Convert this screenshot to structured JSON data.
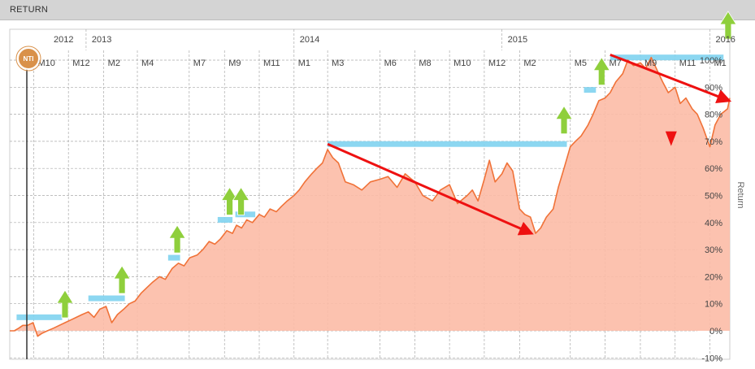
{
  "panel": {
    "title": "RETURN"
  },
  "badge": {
    "label": "NTI"
  },
  "colors": {
    "area": "#fcbba6",
    "line": "#f07238",
    "level_bar": "#7fd3f0",
    "buy_arrow": "#8fcf3c",
    "sell_arrow": "#ee1111",
    "trend_arrow": "#ee1111",
    "grid": "#aaaaaa",
    "badge": "#d9914a"
  },
  "chart_data": {
    "type": "area",
    "title": "",
    "xlabel": "",
    "ylabel": "Return",
    "ylim": [
      -10,
      100
    ],
    "xlim": [
      "2012-08-20",
      "2016-02-05"
    ],
    "grid": true,
    "y_ticks": [
      "-10%",
      "0%",
      "10%",
      "20%",
      "30%",
      "40%",
      "50%",
      "60%",
      "70%",
      "80%",
      "90%",
      "100%"
    ],
    "y_tick_values": [
      -10,
      0,
      10,
      20,
      30,
      40,
      50,
      60,
      70,
      80,
      90,
      100
    ],
    "year_labels": [
      {
        "label": "2012",
        "date": "2012-09-01"
      },
      {
        "label": "2013",
        "date": "2013-01-01"
      },
      {
        "label": "2014",
        "date": "2014-01-01"
      },
      {
        "label": "2015",
        "date": "2015-01-01"
      },
      {
        "label": "2016",
        "date": "2016-01-01"
      }
    ],
    "month_labels": [
      {
        "label": "M10",
        "date": "2012-10-01"
      },
      {
        "label": "M12",
        "date": "2012-12-01"
      },
      {
        "label": "M2",
        "date": "2013-02-01"
      },
      {
        "label": "M4",
        "date": "2013-04-01"
      },
      {
        "label": "M7",
        "date": "2013-07-01"
      },
      {
        "label": "M9",
        "date": "2013-09-01"
      },
      {
        "label": "M11",
        "date": "2013-11-01"
      },
      {
        "label": "M1",
        "date": "2014-01-01"
      },
      {
        "label": "M3",
        "date": "2014-03-01"
      },
      {
        "label": "M6",
        "date": "2014-06-01"
      },
      {
        "label": "M8",
        "date": "2014-08-01"
      },
      {
        "label": "M10",
        "date": "2014-10-01"
      },
      {
        "label": "M12",
        "date": "2014-12-01"
      },
      {
        "label": "M2",
        "date": "2015-02-01"
      },
      {
        "label": "M5",
        "date": "2015-05-01"
      },
      {
        "label": "M7",
        "date": "2015-07-01"
      },
      {
        "label": "M9",
        "date": "2015-09-01"
      },
      {
        "label": "M11",
        "date": "2015-11-01"
      },
      {
        "label": "M1",
        "date": "2016-01-01"
      }
    ],
    "series": [
      {
        "x": [
          "2012-08-20",
          "2012-08-28",
          "2012-09-05",
          "2012-09-12",
          "2012-09-20",
          "2012-09-30",
          "2012-10-08",
          "2012-10-15",
          "2012-10-25",
          "2012-11-05",
          "2012-11-15",
          "2012-11-25",
          "2012-12-05",
          "2012-12-15",
          "2012-12-25",
          "2013-01-05",
          "2013-01-15",
          "2013-01-25",
          "2013-02-05",
          "2013-02-15",
          "2013-02-25",
          "2013-03-08",
          "2013-03-18",
          "2013-03-28",
          "2013-04-08",
          "2013-04-18",
          "2013-04-28",
          "2013-05-10",
          "2013-05-20",
          "2013-06-01",
          "2013-06-12",
          "2013-06-22",
          "2013-07-02",
          "2013-07-15",
          "2013-07-25",
          "2013-08-05",
          "2013-08-15",
          "2013-08-25",
          "2013-09-05",
          "2013-09-15",
          "2013-09-22",
          "2013-10-01",
          "2013-10-10",
          "2013-10-20",
          "2013-11-01",
          "2013-11-10",
          "2013-11-20",
          "2013-12-01",
          "2013-12-10",
          "2013-12-20",
          "2014-01-01",
          "2014-01-10",
          "2014-01-20",
          "2014-02-01",
          "2014-02-10",
          "2014-02-20",
          "2014-03-01",
          "2014-03-10",
          "2014-03-20",
          "2014-04-01",
          "2014-04-15",
          "2014-04-30",
          "2014-05-15",
          "2014-06-01",
          "2014-06-15",
          "2014-07-01",
          "2014-07-15",
          "2014-08-01",
          "2014-08-15",
          "2014-09-01",
          "2014-09-15",
          "2014-10-01",
          "2014-10-15",
          "2014-11-01",
          "2014-11-10",
          "2014-11-20",
          "2014-12-01",
          "2014-12-10",
          "2014-12-20",
          "2015-01-01",
          "2015-01-10",
          "2015-01-20",
          "2015-02-01",
          "2015-02-10",
          "2015-02-20",
          "2015-03-01",
          "2015-03-10",
          "2015-03-20",
          "2015-04-01",
          "2015-04-10",
          "2015-04-20",
          "2015-05-01",
          "2015-05-10",
          "2015-05-20",
          "2015-06-01",
          "2015-06-10",
          "2015-06-20",
          "2015-07-01",
          "2015-07-10",
          "2015-07-20",
          "2015-08-01",
          "2015-08-10",
          "2015-08-20",
          "2015-09-01",
          "2015-09-10",
          "2015-09-20",
          "2015-10-01",
          "2015-10-10",
          "2015-10-20",
          "2015-11-01",
          "2015-11-10",
          "2015-11-20",
          "2015-12-01",
          "2015-12-10",
          "2015-12-20",
          "2016-01-01",
          "2016-01-10",
          "2016-01-20",
          "2016-02-01",
          "2016-02-05"
        ],
        "y": [
          0,
          0,
          1,
          2,
          2,
          3,
          -2,
          -1,
          0,
          1,
          2,
          3,
          4,
          5,
          6,
          7,
          5,
          8,
          9,
          3,
          6,
          8,
          10,
          11,
          14,
          16,
          18,
          20,
          19,
          23,
          25,
          24,
          27,
          28,
          30,
          33,
          32,
          34,
          37,
          36,
          39,
          38,
          41,
          40,
          43,
          42,
          45,
          44,
          46,
          48,
          50,
          52,
          55,
          58,
          60,
          62,
          67,
          64,
          62,
          55,
          54,
          52,
          55,
          56,
          57,
          53,
          58,
          55,
          50,
          48,
          52,
          54,
          47,
          50,
          52,
          48,
          56,
          63,
          55,
          58,
          62,
          59,
          45,
          43,
          42,
          36,
          38,
          42,
          45,
          53,
          60,
          68,
          70,
          72,
          76,
          80,
          85,
          86,
          88,
          92,
          95,
          100,
          98,
          99,
          97,
          101,
          96,
          92,
          88,
          90,
          84,
          86,
          82,
          80,
          75,
          68,
          76,
          80,
          82,
          86
        ]
      }
    ],
    "level_bars": [
      {
        "x_start": "2012-09-01",
        "x_end": "2012-11-20",
        "y": 5
      },
      {
        "x_start": "2013-01-05",
        "x_end": "2013-03-10",
        "y": 12
      },
      {
        "x_start": "2013-05-25",
        "x_end": "2013-06-15",
        "y": 27
      },
      {
        "x_start": "2013-08-20",
        "x_end": "2013-09-15",
        "y": 41
      },
      {
        "x_start": "2013-09-20",
        "x_end": "2013-10-25",
        "y": 43
      },
      {
        "x_start": "2014-03-01",
        "x_end": "2015-04-25",
        "y": 69
      },
      {
        "x_start": "2015-05-25",
        "x_end": "2015-06-15",
        "y": 89
      },
      {
        "x_start": "2015-07-10",
        "x_end": "2016-01-25",
        "y": 101
      }
    ],
    "buy_signals": [
      {
        "x": "2012-11-25",
        "y": 9
      },
      {
        "x": "2013-03-05",
        "y": 18
      },
      {
        "x": "2013-06-10",
        "y": 33
      },
      {
        "x": "2013-09-10",
        "y": 47
      },
      {
        "x": "2013-09-30",
        "y": 47
      },
      {
        "x": "2015-04-20",
        "y": 77
      },
      {
        "x": "2015-06-25",
        "y": 95
      },
      {
        "x": "2016-02-02",
        "y": 112
      }
    ],
    "sell_signals": [
      {
        "x": "2015-10-25",
        "y": 71
      }
    ],
    "trend_arrows": [
      {
        "from": {
          "x": "2014-03-01",
          "y": 69
        },
        "to": {
          "x": "2015-02-22",
          "y": 36
        }
      },
      {
        "from": {
          "x": "2015-07-10",
          "y": 102
        },
        "to": {
          "x": "2016-02-04",
          "y": 85
        }
      }
    ]
  }
}
